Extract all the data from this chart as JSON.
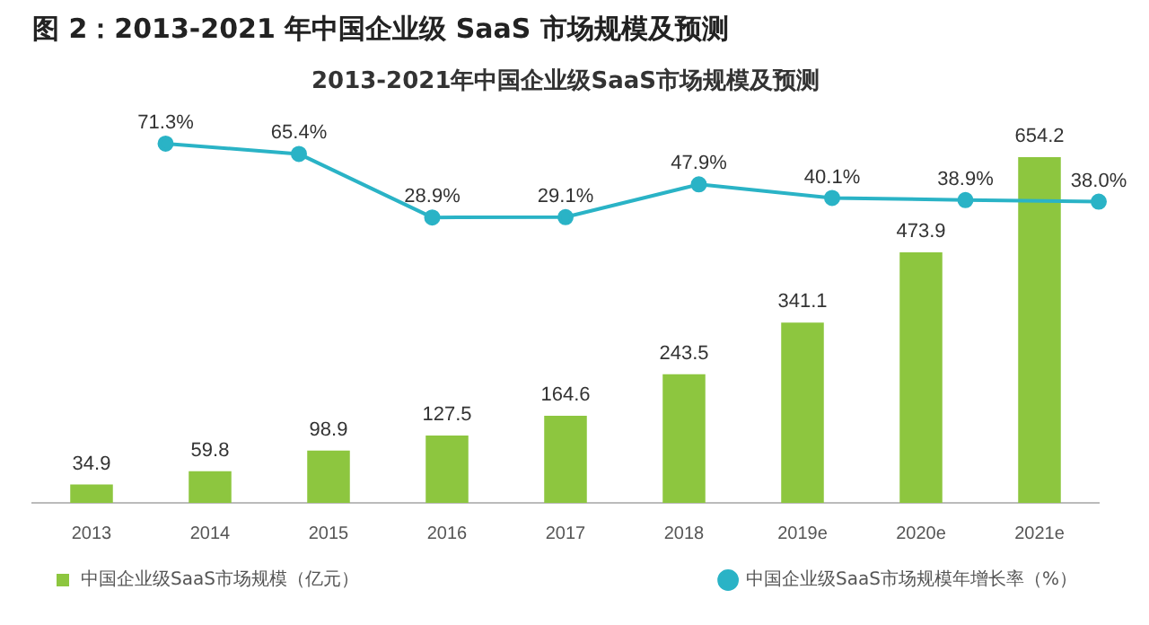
{
  "chart_data": [
    {
      "type": "line",
      "title": "图 2：2013-2021 年中国企业级 SaaS 市场规模及预测",
      "subtitle": "2013-2021年中国企业级SaaS市场规模及预测",
      "categories": [
        null,
        null,
        null,
        null,
        null,
        null,
        null,
        null,
        null
      ],
      "series": [
        {
          "name": "中国企业级SaaS市场规模年增长率（%）",
          "color": "#2ab3c6",
          "values": [
            null,
            71.3,
            65.4,
            28.9,
            29.1,
            47.9,
            40.1,
            38.9,
            38.0
          ],
          "value_labels": [
            null,
            "71.3%",
            "65.4%",
            "28.9%",
            "29.1%",
            "47.9%",
            "40.1%",
            "38.9%",
            "38.0%"
          ]
        }
      ],
      "marker": "circle",
      "grid": false,
      "tick_labels": false,
      "legend": "bottom right"
    },
    {
      "type": "bar",
      "categories": [
        "2013",
        "2014",
        "2015",
        "2016",
        "2017",
        "2018",
        "2019e",
        "2020e",
        "2021e"
      ],
      "series": [
        {
          "name": "中国企业级SaaS市场规模（亿元）",
          "color": "#8dc63f",
          "values": [
            34.9,
            59.8,
            98.9,
            127.5,
            164.6,
            243.5,
            341.1,
            473.9,
            654.2
          ]
        }
      ],
      "data_labels": true,
      "grid": false,
      "legend": "bottom left",
      "tick_labels": "x"
    }
  ]
}
